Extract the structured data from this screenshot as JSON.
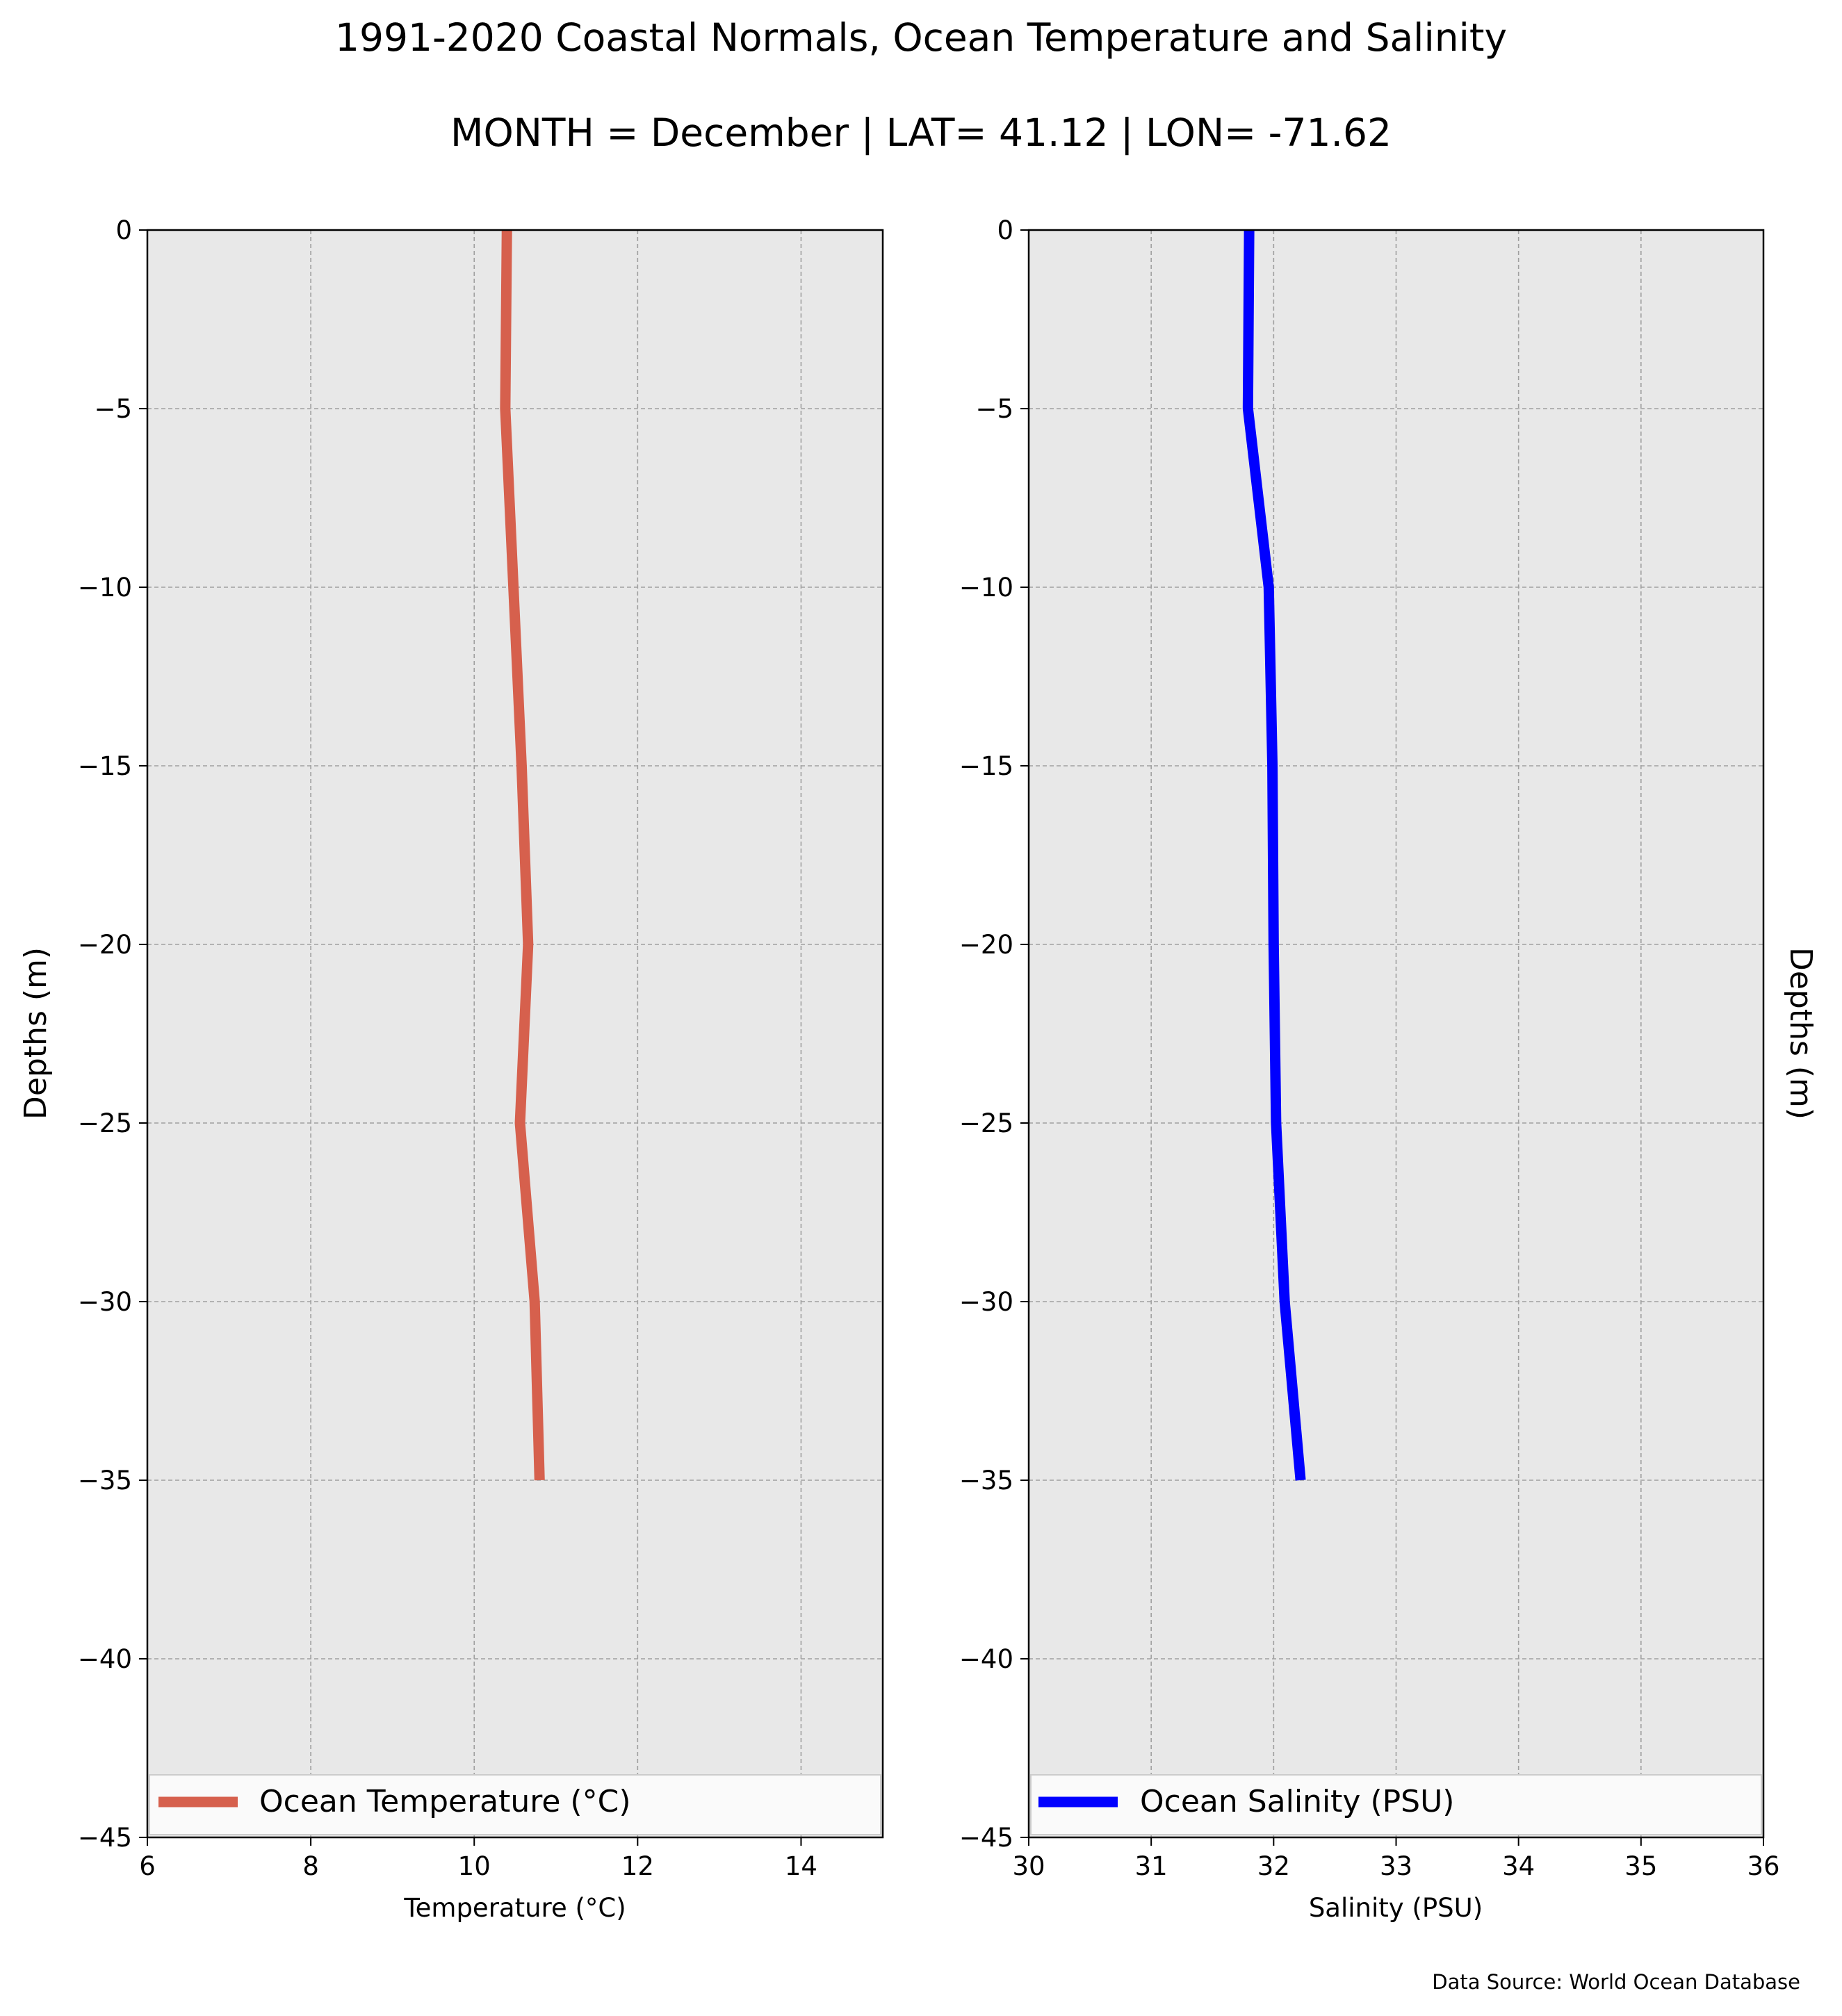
{
  "figure": {
    "title": "1991-2020 Coastal Normals, Ocean Temperature and Salinity",
    "subtitle": "MONTH = December | LAT= 41.12 | LON= -71.62",
    "source_note": "Data Source: World Ocean Database"
  },
  "chart_data": [
    {
      "type": "line",
      "xlabel": "Temperature ($^\\circ$C)",
      "xlabel_display": "Temperature (°C)",
      "ylabel": "Depths (m)",
      "xlim": [
        6,
        15
      ],
      "ylim": [
        -45,
        0
      ],
      "xticks": [
        6,
        8,
        10,
        12,
        14
      ],
      "xtick_labels": [
        "6",
        "8",
        "10",
        "12",
        "14"
      ],
      "yticks": [
        0,
        -5,
        -10,
        -15,
        -20,
        -25,
        -30,
        -35,
        -40,
        -45
      ],
      "ytick_labels": [
        "0",
        "−5",
        "−10",
        "−15",
        "−20",
        "−25",
        "−30",
        "−35",
        "−40",
        "−45"
      ],
      "grid": true,
      "legend_position": "lower-center",
      "series": [
        {
          "name": "Ocean Temperature (°C)",
          "color": "#d6604d",
          "depth": [
            0,
            -5,
            -10,
            -15,
            -20,
            -25,
            -30,
            -35
          ],
          "values": [
            10.4,
            10.38,
            10.48,
            10.58,
            10.66,
            10.56,
            10.74,
            10.8
          ]
        }
      ]
    },
    {
      "type": "line",
      "xlabel": "Salinity (PSU)",
      "ylabel": "Depths (m)",
      "xlim": [
        30,
        36
      ],
      "ylim": [
        -45,
        0
      ],
      "xticks": [
        30,
        31,
        32,
        33,
        34,
        35,
        36
      ],
      "xtick_labels": [
        "30",
        "31",
        "32",
        "33",
        "34",
        "35",
        "36"
      ],
      "yticks": [
        0,
        -5,
        -10,
        -15,
        -20,
        -25,
        -30,
        -35,
        -40,
        -45
      ],
      "ytick_labels": [
        "0",
        "−5",
        "−10",
        "−15",
        "−20",
        "−25",
        "−30",
        "−35",
        "−40",
        "−45"
      ],
      "grid": true,
      "legend_position": "lower-center",
      "series": [
        {
          "name": "Ocean Salinity (PSU)",
          "color": "#0000ff",
          "depth": [
            0,
            -5,
            -10,
            -15,
            -20,
            -25,
            -30,
            -35
          ],
          "values": [
            31.8,
            31.79,
            31.96,
            31.99,
            32.0,
            32.02,
            32.09,
            32.22
          ]
        }
      ]
    }
  ],
  "colors": {
    "plot_background": "#e8e8e8",
    "grid": "#a0a0a0",
    "legend_background": "#fafafa"
  }
}
